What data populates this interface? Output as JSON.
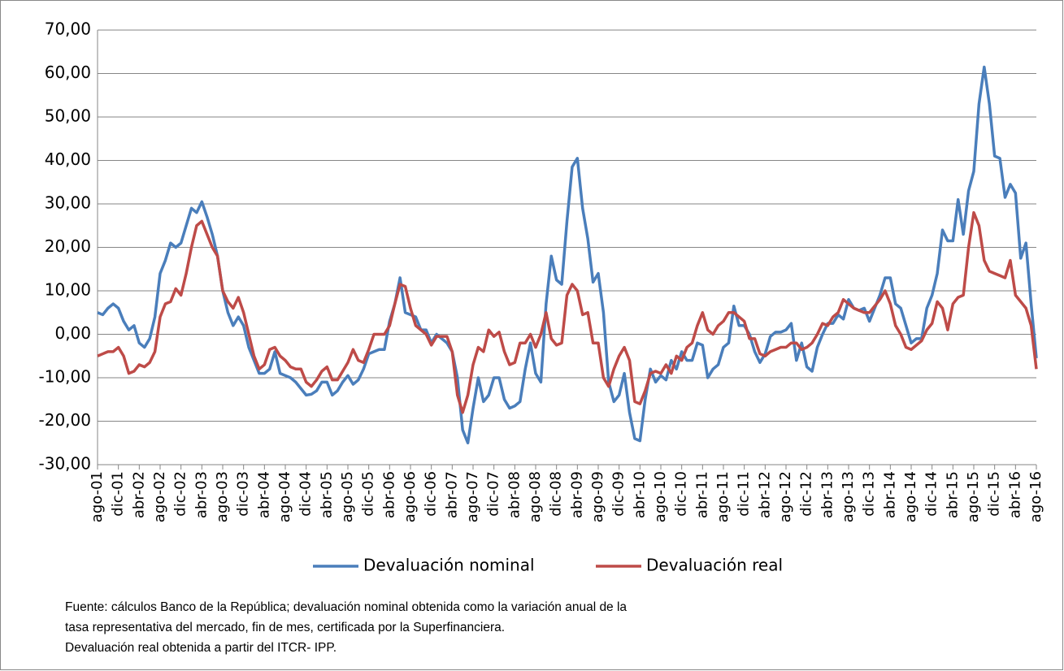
{
  "chart_data": {
    "type": "line",
    "categories": [
      "ago-01",
      null,
      null,
      null,
      "dic-01",
      null,
      null,
      null,
      "abr-02",
      null,
      null,
      null,
      "ago-02",
      null,
      null,
      null,
      "dic-02",
      null,
      null,
      null,
      "abr-03",
      null,
      null,
      null,
      "ago-03",
      null,
      null,
      null,
      "dic-03",
      null,
      null,
      null,
      "abr-04",
      null,
      null,
      null,
      "ago-04",
      null,
      null,
      null,
      "dic-04",
      null,
      null,
      null,
      "abr-05",
      null,
      null,
      null,
      "ago-05",
      null,
      null,
      null,
      "dic-05",
      null,
      null,
      null,
      "abr-06",
      null,
      null,
      null,
      "ago-06",
      null,
      null,
      null,
      "dic-06",
      null,
      null,
      null,
      "abr-07",
      null,
      null,
      null,
      "ago-07",
      null,
      null,
      null,
      "dic-07",
      null,
      null,
      null,
      "abr-08",
      null,
      null,
      null,
      "ago-08",
      null,
      null,
      null,
      "dic-08",
      null,
      null,
      null,
      "abr-09",
      null,
      null,
      null,
      "ago-09",
      null,
      null,
      null,
      "dic-09",
      null,
      null,
      null,
      "abr-10",
      null,
      null,
      null,
      "ago-10",
      null,
      null,
      null,
      "dic-10",
      null,
      null,
      null,
      "abr-11",
      null,
      null,
      null,
      "ago-11",
      null,
      null,
      null,
      "dic-11",
      null,
      null,
      null,
      "abr-12",
      null,
      null,
      null,
      "ago-12",
      null,
      null,
      null,
      "dic-12",
      null,
      null,
      null,
      "abr-13",
      null,
      null,
      null,
      "ago-13",
      null,
      null,
      null,
      "dic-13",
      null,
      null,
      null,
      "abr-14",
      null,
      null,
      null,
      "ago-14",
      null,
      null,
      null,
      "dic-14",
      null,
      null,
      null,
      "abr-15",
      null,
      null,
      null,
      "ago-15",
      null,
      null,
      null,
      "dic-15",
      null,
      null,
      null,
      "abr-16",
      null,
      null,
      null,
      "ago-16"
    ],
    "series": [
      {
        "name": "Devaluación nominal",
        "color": "#4a7ebb",
        "values": [
          5,
          4.5,
          6,
          7,
          6,
          3,
          1,
          2,
          -2,
          -3,
          -1,
          4,
          14,
          17,
          21,
          20,
          21,
          25,
          29,
          28,
          30.5,
          27,
          23,
          18,
          10,
          5,
          2,
          4,
          2,
          -3,
          -6,
          -9,
          -9,
          -8,
          -4,
          -9,
          -9.5,
          -10,
          -11,
          -12.5,
          -14,
          -13.8,
          -13,
          -11,
          -11,
          -14,
          -13,
          -11,
          -9.5,
          -11.5,
          -10.5,
          -8,
          -4.5,
          -4,
          -3.5,
          -3.5,
          3,
          7,
          13,
          5,
          4.5,
          4,
          1,
          1,
          -2,
          0,
          -1,
          -2,
          -4,
          -10,
          -22,
          -25,
          -17,
          -10,
          -15.5,
          -14,
          -10,
          -10,
          -15,
          -17,
          -16.5,
          -15.5,
          -8,
          -2,
          -9,
          -11,
          7,
          18,
          12.5,
          11.5,
          26,
          38.5,
          40.5,
          29,
          22,
          12,
          14,
          5,
          -11,
          -15.5,
          -14,
          -9,
          -18,
          -24,
          -24.5,
          -15,
          -8,
          -11,
          -9.5,
          -10.5,
          -6,
          -8,
          -4,
          -6,
          -6,
          -2,
          -2.5,
          -10,
          -8,
          -7,
          -3,
          -2,
          6.5,
          2,
          2,
          0,
          -4,
          -6.5,
          -4.5,
          -0.5,
          0.5,
          0.5,
          1,
          2.5,
          -6,
          -2,
          -7.5,
          -8.5,
          -3,
          0,
          2.5,
          2.5,
          4.5,
          3.5,
          8,
          6,
          5.5,
          6,
          3,
          6,
          9,
          13,
          13,
          7,
          6,
          2,
          -2,
          -1,
          -1,
          6,
          9,
          14,
          24,
          21.5,
          21.5,
          31,
          23,
          33,
          37.5,
          53,
          61.5,
          53,
          41,
          40.5,
          31.5,
          34.5,
          32.5,
          17.5,
          21,
          7,
          -5.5
        ]
      },
      {
        "name": "Devaluación real",
        "color": "#be4b48",
        "values": [
          -5,
          -4.5,
          -4,
          -4,
          -3,
          -5,
          -9,
          -8.5,
          -7,
          -7.5,
          -6.5,
          -4,
          4,
          7,
          7.5,
          10.5,
          9,
          14,
          20,
          25,
          26,
          23,
          20,
          18,
          10,
          7.5,
          6,
          8.5,
          5,
          0,
          -5,
          -8,
          -7,
          -3.5,
          -3,
          -5,
          -6,
          -7.5,
          -8,
          -8,
          -11,
          -12,
          -10.5,
          -8.5,
          -7.5,
          -10.5,
          -10.5,
          -8.5,
          -6.5,
          -3.5,
          -6,
          -6.5,
          -3.5,
          0,
          0,
          0,
          2,
          7,
          11.5,
          11,
          6,
          2,
          1,
          0,
          -2.5,
          -0.5,
          -0.5,
          -0.5,
          -4,
          -14,
          -18,
          -14,
          -7,
          -3,
          -4,
          1,
          -0.5,
          0.5,
          -4,
          -7,
          -6.5,
          -2,
          -2,
          0,
          -3,
          0,
          5,
          -1,
          -2.5,
          -2,
          9,
          11.5,
          10,
          4.5,
          5,
          -2,
          -2,
          -10,
          -12,
          -8,
          -5,
          -3,
          -6,
          -15.5,
          -16,
          -13,
          -9,
          -8.5,
          -9,
          -7,
          -9,
          -5,
          -6,
          -3,
          -2,
          2,
          5,
          1,
          0,
          2,
          3,
          5,
          5,
          4,
          3,
          -1,
          -1,
          -4.5,
          -5,
          -4,
          -3.5,
          -3,
          -3,
          -2,
          -2,
          -3.5,
          -3,
          -2,
          0,
          2.5,
          2,
          4,
          5,
          8,
          7,
          6,
          5.5,
          5,
          5,
          6.5,
          8,
          10,
          7,
          2,
          0,
          -3,
          -3.5,
          -2.5,
          -1.5,
          1,
          2.5,
          7.5,
          6,
          1,
          7,
          8.5,
          9,
          20,
          28,
          25,
          17,
          14.5,
          14,
          13.5,
          13,
          17,
          9,
          7.5,
          6,
          2,
          -8
        ]
      }
    ],
    "ylim": [
      -30,
      70
    ],
    "yticks": [
      {
        "value": -30,
        "label": "-30,00"
      },
      {
        "value": -20,
        "label": "-20,00"
      },
      {
        "value": -10,
        "label": "-10,00"
      },
      {
        "value": 0,
        "label": "0,00"
      },
      {
        "value": 10,
        "label": "10,00"
      },
      {
        "value": 20,
        "label": "20,00"
      },
      {
        "value": 30,
        "label": "30,00"
      },
      {
        "value": 40,
        "label": "40,00"
      },
      {
        "value": 50,
        "label": "50,00"
      },
      {
        "value": 60,
        "label": "60,00"
      },
      {
        "value": 70,
        "label": "70,00"
      }
    ],
    "grid": true,
    "legend": "bottom",
    "footnote": [
      "Fuente: cálculos Banco de la República; devaluación nominal obtenida como la variación anual de la",
      "tasa representativa del mercado, fin de mes, certificada por la Superfinanciera.",
      "Devaluación real obtenida a partir del ITCR- IPP."
    ]
  }
}
